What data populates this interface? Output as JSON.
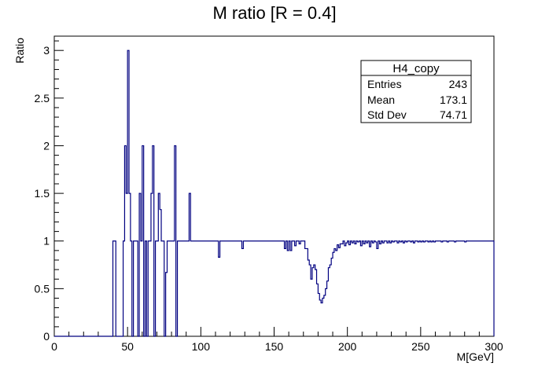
{
  "chart_data": {
    "type": "histogram",
    "title": "M ratio [R = 0.4]",
    "xlabel": "M[GeV]",
    "ylabel": "Ratio",
    "xlim": [
      0,
      300
    ],
    "ylim": [
      0,
      3.15
    ],
    "x_ticks": [
      0,
      50,
      100,
      150,
      200,
      250,
      300
    ],
    "y_ticks": [
      0,
      0.5,
      1,
      1.5,
      2,
      2.5,
      3
    ],
    "grid": false,
    "line_color": "#000080",
    "bin_width": 1,
    "bins": [
      [
        40,
        1
      ],
      [
        41,
        1
      ],
      [
        47,
        1
      ],
      [
        48,
        2
      ],
      [
        49,
        1.5
      ],
      [
        50,
        3
      ],
      [
        51,
        1.5
      ],
      [
        52,
        1
      ],
      [
        54,
        1
      ],
      [
        55,
        1
      ],
      [
        56,
        1
      ],
      [
        58,
        1.5
      ],
      [
        59,
        1
      ],
      [
        60,
        2
      ],
      [
        62,
        1
      ],
      [
        64,
        1
      ],
      [
        65,
        1
      ],
      [
        66,
        1.5
      ],
      [
        67,
        2
      ],
      [
        69,
        1
      ],
      [
        70,
        1
      ],
      [
        71,
        1.5
      ],
      [
        72,
        1.33
      ],
      [
        73,
        1
      ],
      [
        74,
        1
      ],
      [
        76,
        0.67
      ],
      [
        77,
        1
      ],
      [
        78,
        1
      ],
      [
        79,
        1
      ],
      [
        80,
        1
      ],
      [
        81,
        1
      ],
      [
        82,
        2
      ],
      [
        84,
        1
      ],
      [
        85,
        1
      ],
      [
        86,
        1
      ],
      [
        87,
        1
      ],
      [
        88,
        1
      ],
      [
        89,
        1
      ],
      [
        90,
        1
      ],
      [
        91,
        1
      ],
      [
        92,
        1.5
      ],
      [
        93,
        1
      ],
      [
        94,
        1
      ],
      [
        95,
        1
      ],
      [
        96,
        1
      ],
      [
        97,
        1
      ],
      [
        98,
        1
      ],
      [
        99,
        1
      ],
      [
        100,
        1
      ],
      [
        101,
        1
      ],
      [
        102,
        1
      ],
      [
        103,
        1
      ],
      [
        104,
        1
      ],
      [
        105,
        1
      ],
      [
        106,
        1
      ],
      [
        107,
        1
      ],
      [
        108,
        1
      ],
      [
        109,
        1
      ],
      [
        110,
        1
      ],
      [
        111,
        1
      ],
      [
        112,
        0.83
      ],
      [
        113,
        1
      ],
      [
        114,
        1
      ],
      [
        115,
        1
      ],
      [
        116,
        1
      ],
      [
        117,
        1
      ],
      [
        118,
        1
      ],
      [
        119,
        1
      ],
      [
        120,
        1
      ],
      [
        121,
        1
      ],
      [
        122,
        1
      ],
      [
        123,
        1
      ],
      [
        124,
        1
      ],
      [
        125,
        1
      ],
      [
        126,
        1
      ],
      [
        127,
        1
      ],
      [
        128,
        0.92
      ],
      [
        129,
        1
      ],
      [
        130,
        1
      ],
      [
        131,
        1
      ],
      [
        132,
        1
      ],
      [
        133,
        1
      ],
      [
        134,
        1
      ],
      [
        135,
        1
      ],
      [
        136,
        1
      ],
      [
        137,
        1
      ],
      [
        138,
        1
      ],
      [
        139,
        1
      ],
      [
        140,
        1
      ],
      [
        141,
        1
      ],
      [
        142,
        1
      ],
      [
        143,
        1
      ],
      [
        144,
        1
      ],
      [
        145,
        1
      ],
      [
        146,
        1
      ],
      [
        147,
        1
      ],
      [
        148,
        1
      ],
      [
        149,
        1
      ],
      [
        150,
        1
      ],
      [
        151,
        1
      ],
      [
        152,
        1
      ],
      [
        153,
        1
      ],
      [
        154,
        1
      ],
      [
        155,
        1
      ],
      [
        156,
        1
      ],
      [
        157,
        0.92
      ],
      [
        158,
        1
      ],
      [
        159,
        0.9
      ],
      [
        160,
        1
      ],
      [
        161,
        0.9
      ],
      [
        162,
        1
      ],
      [
        163,
        1
      ],
      [
        164,
        0.95
      ],
      [
        165,
        1
      ],
      [
        166,
        1
      ],
      [
        167,
        0.97
      ],
      [
        168,
        1
      ],
      [
        169,
        1
      ],
      [
        170,
        1
      ],
      [
        171,
        0.92
      ],
      [
        172,
        0.92
      ],
      [
        173,
        0.8
      ],
      [
        174,
        0.75
      ],
      [
        175,
        0.6
      ],
      [
        176,
        0.72
      ],
      [
        177,
        0.75
      ],
      [
        178,
        0.7
      ],
      [
        179,
        0.55
      ],
      [
        180,
        0.45
      ],
      [
        181,
        0.38
      ],
      [
        182,
        0.35
      ],
      [
        183,
        0.4
      ],
      [
        184,
        0.43
      ],
      [
        185,
        0.5
      ],
      [
        186,
        0.58
      ],
      [
        187,
        0.72
      ],
      [
        188,
        0.75
      ],
      [
        189,
        0.82
      ],
      [
        190,
        0.88
      ],
      [
        191,
        0.92
      ],
      [
        192,
        0.9
      ],
      [
        193,
        0.96
      ],
      [
        194,
        0.93
      ],
      [
        195,
        0.97
      ],
      [
        196,
        0.97
      ],
      [
        197,
        1
      ],
      [
        198,
        0.95
      ],
      [
        199,
        0.98
      ],
      [
        200,
        1
      ],
      [
        201,
        0.96
      ],
      [
        202,
        1
      ],
      [
        203,
        0.98
      ],
      [
        204,
        1
      ],
      [
        205,
        0.97
      ],
      [
        206,
        1
      ],
      [
        207,
        0.99
      ],
      [
        208,
        1
      ],
      [
        209,
        0.95
      ],
      [
        210,
        1
      ],
      [
        211,
        0.97
      ],
      [
        212,
        1
      ],
      [
        213,
        0.98
      ],
      [
        214,
        1
      ],
      [
        215,
        0.94
      ],
      [
        216,
        1
      ],
      [
        217,
        0.98
      ],
      [
        218,
        1
      ],
      [
        219,
        0.99
      ],
      [
        220,
        0.92
      ],
      [
        221,
        1
      ],
      [
        222,
        0.97
      ],
      [
        223,
        1
      ],
      [
        224,
        0.98
      ],
      [
        225,
        1
      ],
      [
        226,
        1
      ],
      [
        227,
        0.98
      ],
      [
        228,
        1
      ],
      [
        229,
        0.98
      ],
      [
        230,
        1
      ],
      [
        231,
        0.99
      ],
      [
        232,
        1
      ],
      [
        233,
        1
      ],
      [
        234,
        0.98
      ],
      [
        235,
        1
      ],
      [
        236,
        0.99
      ],
      [
        237,
        1
      ],
      [
        238,
        0.98
      ],
      [
        239,
        1
      ],
      [
        240,
        0.99
      ],
      [
        241,
        1
      ],
      [
        242,
        1
      ],
      [
        243,
        0.99
      ],
      [
        244,
        1
      ],
      [
        245,
        0.98
      ],
      [
        246,
        1
      ],
      [
        247,
        1
      ],
      [
        248,
        0.99
      ],
      [
        249,
        1
      ],
      [
        250,
        0.99
      ],
      [
        251,
        1
      ],
      [
        252,
        0.99
      ],
      [
        253,
        1
      ],
      [
        254,
        1
      ],
      [
        255,
        0.99
      ],
      [
        256,
        1
      ],
      [
        257,
        0.99
      ],
      [
        258,
        1
      ],
      [
        259,
        0.99
      ],
      [
        260,
        1
      ],
      [
        261,
        1
      ],
      [
        262,
        1
      ],
      [
        263,
        1
      ],
      [
        264,
        0.99
      ],
      [
        265,
        1
      ],
      [
        266,
        1
      ],
      [
        267,
        1
      ],
      [
        268,
        0.99
      ],
      [
        269,
        1
      ],
      [
        270,
        1
      ],
      [
        271,
        1
      ],
      [
        272,
        1
      ],
      [
        273,
        0.99
      ],
      [
        274,
        1
      ],
      [
        275,
        1
      ],
      [
        276,
        1
      ],
      [
        277,
        1
      ],
      [
        278,
        1
      ],
      [
        279,
        1
      ],
      [
        280,
        0.99
      ],
      [
        281,
        1
      ],
      [
        282,
        1
      ],
      [
        283,
        1
      ],
      [
        284,
        1
      ],
      [
        285,
        1
      ],
      [
        286,
        1
      ],
      [
        287,
        1
      ],
      [
        288,
        1
      ],
      [
        289,
        1
      ],
      [
        290,
        1
      ],
      [
        291,
        1
      ],
      [
        292,
        1
      ],
      [
        293,
        1
      ],
      [
        294,
        1
      ],
      [
        295,
        1
      ],
      [
        296,
        1
      ],
      [
        297,
        1
      ],
      [
        298,
        1
      ],
      [
        299,
        1
      ]
    ],
    "stats_box": {
      "title": "H4_copy",
      "rows": [
        {
          "label": "Entries",
          "value": "243"
        },
        {
          "label": "Mean",
          "value": "173.1"
        },
        {
          "label": "Std Dev",
          "value": "74.71"
        }
      ]
    }
  }
}
